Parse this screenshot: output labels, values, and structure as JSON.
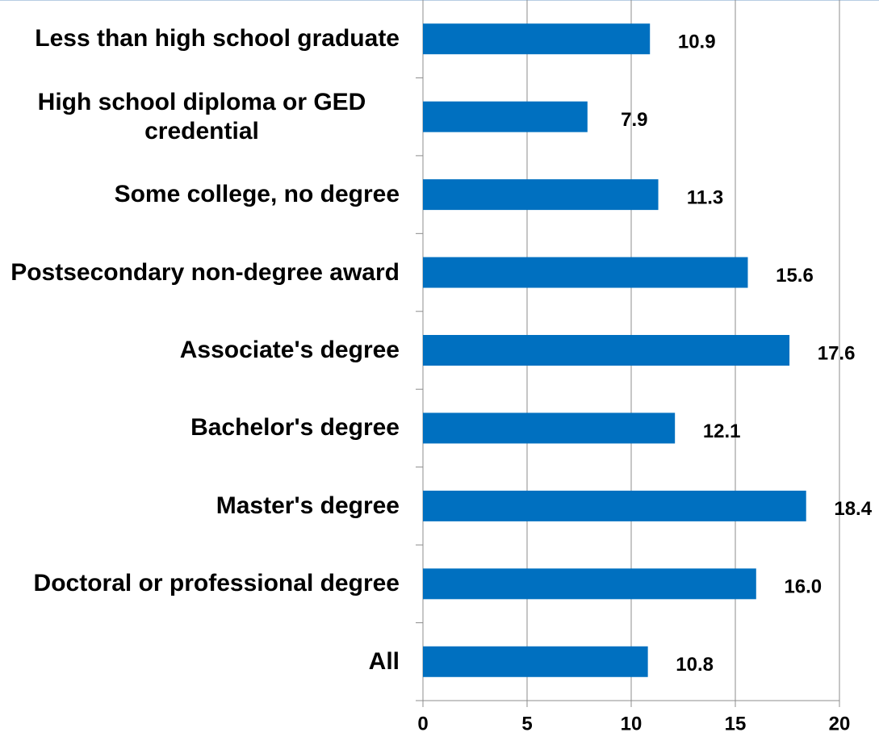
{
  "chart_data": {
    "type": "bar",
    "orientation": "horizontal",
    "categories": [
      "Less than high school graduate",
      "High school diploma or GED credential",
      "Some college, no degree",
      "Postsecondary non-degree award",
      "Associate's degree",
      "Bachelor's degree",
      "Master's degree",
      "Doctoral or professional degree",
      "All"
    ],
    "values": [
      10.9,
      7.9,
      11.3,
      15.6,
      17.6,
      12.1,
      18.4,
      16.0,
      10.8
    ],
    "value_labels": [
      "10.9",
      "7.9",
      "11.3",
      "15.6",
      "17.6",
      "12.1",
      "18.4",
      "16.0",
      "10.8"
    ],
    "color": "#0070c0",
    "xlim": [
      0,
      20
    ],
    "xticks": [
      0,
      5,
      10,
      15,
      20
    ],
    "grid": true
  }
}
